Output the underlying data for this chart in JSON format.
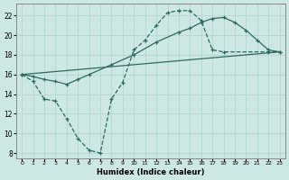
{
  "line1_x": [
    0,
    1,
    2,
    3,
    4,
    5,
    6,
    7,
    8,
    9,
    10,
    11,
    12,
    13,
    14,
    15,
    16,
    17,
    18,
    22,
    23
  ],
  "line1_y": [
    16.0,
    15.3,
    13.5,
    13.3,
    11.5,
    9.5,
    8.3,
    8.0,
    13.5,
    15.2,
    18.5,
    19.5,
    21.0,
    22.3,
    22.5,
    22.5,
    21.5,
    18.5,
    18.3,
    18.3,
    18.3
  ],
  "line2_x": [
    0,
    23
  ],
  "line2_y": [
    16.0,
    18.3
  ],
  "line3_x": [
    0,
    1,
    2,
    3,
    4,
    5,
    6,
    8,
    10,
    12,
    14,
    15,
    16,
    17,
    18,
    19,
    20,
    21,
    22,
    23
  ],
  "line3_y": [
    16.0,
    15.8,
    15.5,
    15.3,
    15.0,
    15.5,
    16.0,
    17.0,
    18.0,
    19.3,
    20.3,
    20.7,
    21.3,
    21.7,
    21.8,
    21.3,
    20.5,
    19.5,
    18.5,
    18.3
  ],
  "color": "#2d6b5e",
  "bg_color": "#cde8e2",
  "grid_color": "#aed4cc",
  "xlabel": "Humidex (Indice chaleur)",
  "xlim": [
    -0.5,
    23.5
  ],
  "ylim": [
    7.5,
    23.2
  ],
  "yticks": [
    8,
    10,
    12,
    14,
    16,
    18,
    20,
    22
  ],
  "xticks": [
    0,
    1,
    2,
    3,
    4,
    5,
    6,
    7,
    8,
    9,
    10,
    11,
    12,
    13,
    14,
    15,
    16,
    17,
    18,
    19,
    20,
    21,
    22,
    23
  ]
}
